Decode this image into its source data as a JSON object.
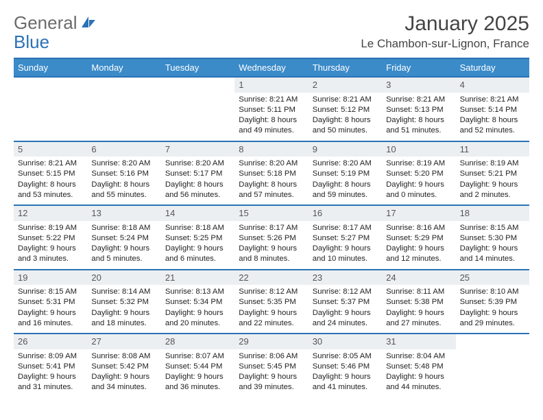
{
  "logo": {
    "text_a": "General",
    "text_b": "Blue"
  },
  "title": "January 2025",
  "location": "Le Chambon-sur-Lignon, France",
  "colors": {
    "header_bar": "#3b8bc9",
    "border": "#2a72b5",
    "daynum_bg": "#eceff1",
    "text": "#222222",
    "logo_gray": "#6b6b6b"
  },
  "weekdays": [
    "Sunday",
    "Monday",
    "Tuesday",
    "Wednesday",
    "Thursday",
    "Friday",
    "Saturday"
  ],
  "weeks": [
    [
      null,
      null,
      null,
      {
        "n": "1",
        "sr": "8:21 AM",
        "ss": "5:11 PM",
        "dl": "8 hours and 49 minutes."
      },
      {
        "n": "2",
        "sr": "8:21 AM",
        "ss": "5:12 PM",
        "dl": "8 hours and 50 minutes."
      },
      {
        "n": "3",
        "sr": "8:21 AM",
        "ss": "5:13 PM",
        "dl": "8 hours and 51 minutes."
      },
      {
        "n": "4",
        "sr": "8:21 AM",
        "ss": "5:14 PM",
        "dl": "8 hours and 52 minutes."
      }
    ],
    [
      {
        "n": "5",
        "sr": "8:21 AM",
        "ss": "5:15 PM",
        "dl": "8 hours and 53 minutes."
      },
      {
        "n": "6",
        "sr": "8:20 AM",
        "ss": "5:16 PM",
        "dl": "8 hours and 55 minutes."
      },
      {
        "n": "7",
        "sr": "8:20 AM",
        "ss": "5:17 PM",
        "dl": "8 hours and 56 minutes."
      },
      {
        "n": "8",
        "sr": "8:20 AM",
        "ss": "5:18 PM",
        "dl": "8 hours and 57 minutes."
      },
      {
        "n": "9",
        "sr": "8:20 AM",
        "ss": "5:19 PM",
        "dl": "8 hours and 59 minutes."
      },
      {
        "n": "10",
        "sr": "8:19 AM",
        "ss": "5:20 PM",
        "dl": "9 hours and 0 minutes."
      },
      {
        "n": "11",
        "sr": "8:19 AM",
        "ss": "5:21 PM",
        "dl": "9 hours and 2 minutes."
      }
    ],
    [
      {
        "n": "12",
        "sr": "8:19 AM",
        "ss": "5:22 PM",
        "dl": "9 hours and 3 minutes."
      },
      {
        "n": "13",
        "sr": "8:18 AM",
        "ss": "5:24 PM",
        "dl": "9 hours and 5 minutes."
      },
      {
        "n": "14",
        "sr": "8:18 AM",
        "ss": "5:25 PM",
        "dl": "9 hours and 6 minutes."
      },
      {
        "n": "15",
        "sr": "8:17 AM",
        "ss": "5:26 PM",
        "dl": "9 hours and 8 minutes."
      },
      {
        "n": "16",
        "sr": "8:17 AM",
        "ss": "5:27 PM",
        "dl": "9 hours and 10 minutes."
      },
      {
        "n": "17",
        "sr": "8:16 AM",
        "ss": "5:29 PM",
        "dl": "9 hours and 12 minutes."
      },
      {
        "n": "18",
        "sr": "8:15 AM",
        "ss": "5:30 PM",
        "dl": "9 hours and 14 minutes."
      }
    ],
    [
      {
        "n": "19",
        "sr": "8:15 AM",
        "ss": "5:31 PM",
        "dl": "9 hours and 16 minutes."
      },
      {
        "n": "20",
        "sr": "8:14 AM",
        "ss": "5:32 PM",
        "dl": "9 hours and 18 minutes."
      },
      {
        "n": "21",
        "sr": "8:13 AM",
        "ss": "5:34 PM",
        "dl": "9 hours and 20 minutes."
      },
      {
        "n": "22",
        "sr": "8:12 AM",
        "ss": "5:35 PM",
        "dl": "9 hours and 22 minutes."
      },
      {
        "n": "23",
        "sr": "8:12 AM",
        "ss": "5:37 PM",
        "dl": "9 hours and 24 minutes."
      },
      {
        "n": "24",
        "sr": "8:11 AM",
        "ss": "5:38 PM",
        "dl": "9 hours and 27 minutes."
      },
      {
        "n": "25",
        "sr": "8:10 AM",
        "ss": "5:39 PM",
        "dl": "9 hours and 29 minutes."
      }
    ],
    [
      {
        "n": "26",
        "sr": "8:09 AM",
        "ss": "5:41 PM",
        "dl": "9 hours and 31 minutes."
      },
      {
        "n": "27",
        "sr": "8:08 AM",
        "ss": "5:42 PM",
        "dl": "9 hours and 34 minutes."
      },
      {
        "n": "28",
        "sr": "8:07 AM",
        "ss": "5:44 PM",
        "dl": "9 hours and 36 minutes."
      },
      {
        "n": "29",
        "sr": "8:06 AM",
        "ss": "5:45 PM",
        "dl": "9 hours and 39 minutes."
      },
      {
        "n": "30",
        "sr": "8:05 AM",
        "ss": "5:46 PM",
        "dl": "9 hours and 41 minutes."
      },
      {
        "n": "31",
        "sr": "8:04 AM",
        "ss": "5:48 PM",
        "dl": "9 hours and 44 minutes."
      },
      null
    ]
  ],
  "labels": {
    "sunrise": "Sunrise: ",
    "sunset": "Sunset: ",
    "daylight": "Daylight: "
  }
}
